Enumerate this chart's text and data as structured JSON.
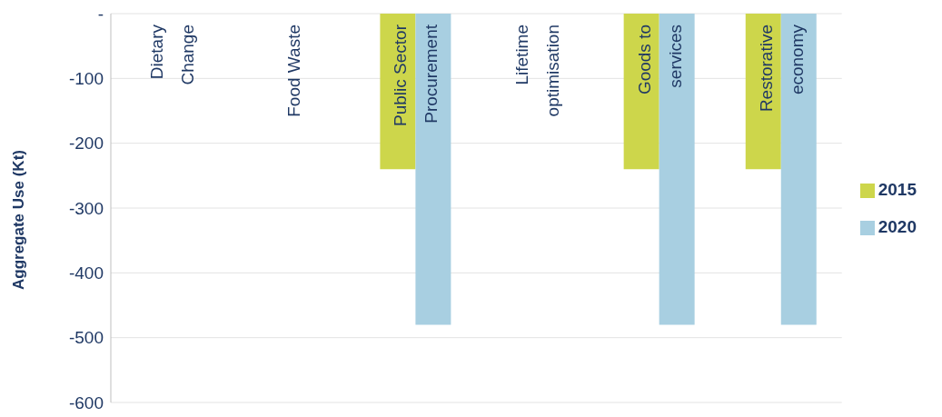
{
  "chart_data": {
    "type": "bar",
    "ylabel": "Aggregate Use (Kt)",
    "categories": [
      "Dietary Change",
      "Food Waste",
      "Public Sector Procurement",
      "Lifetime optimisation",
      "Goods to services",
      "Restorative economy"
    ],
    "series": [
      {
        "name": "2015",
        "color": "#cdd64b",
        "values": [
          0,
          0,
          -240,
          0,
          -240,
          -240
        ]
      },
      {
        "name": "2020",
        "color": "#a8cfe1",
        "values": [
          0,
          0,
          -480,
          0,
          -480,
          -480
        ]
      }
    ],
    "ylim": [
      -600,
      0
    ],
    "yticks": [
      {
        "value": 0,
        "label": "-"
      },
      -100,
      -200,
      -300,
      -400,
      -500,
      -600
    ],
    "grid": "y",
    "legend": "right"
  }
}
